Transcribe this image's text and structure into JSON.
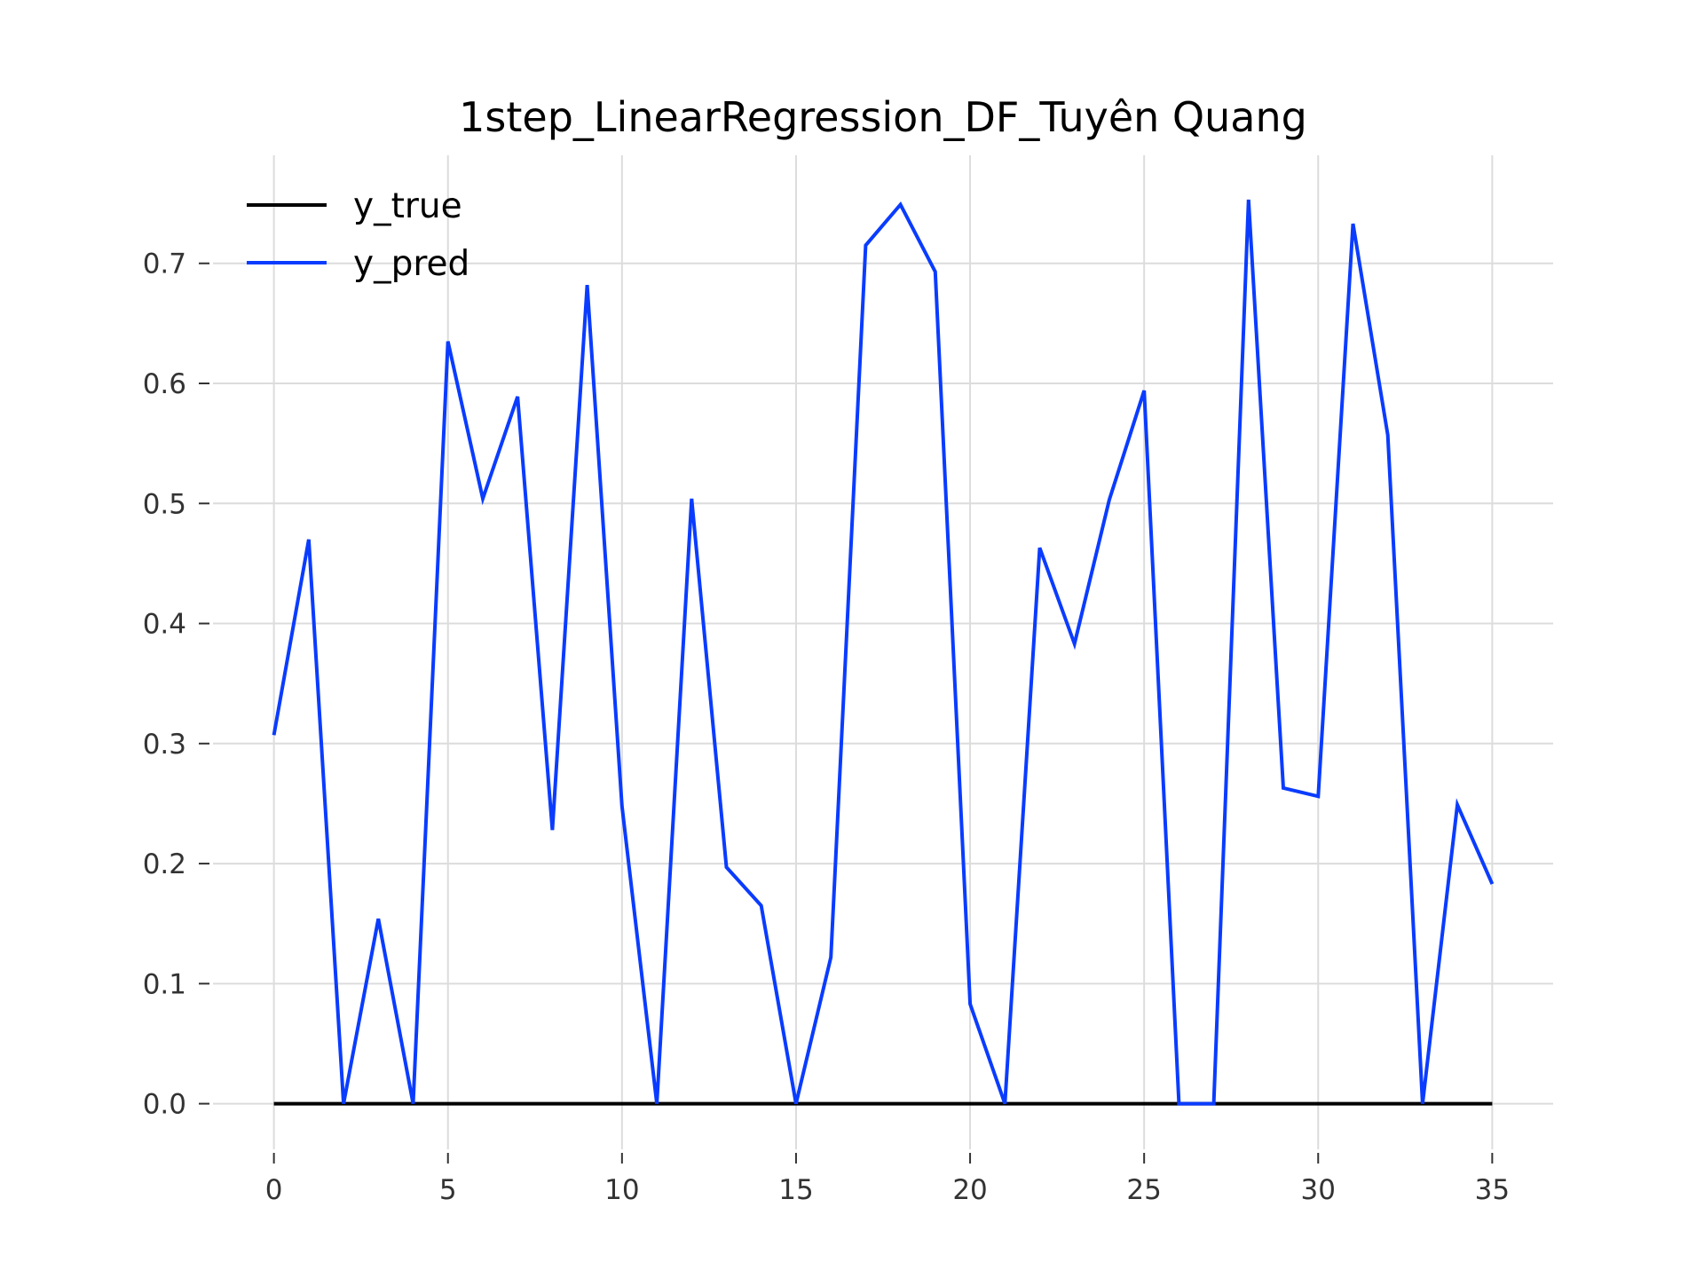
{
  "chart_data": {
    "type": "line",
    "title": "1step_LinearRegression_DF_Tuyên Quang",
    "xlabel": "",
    "ylabel": "",
    "x": [
      0,
      1,
      2,
      3,
      4,
      5,
      6,
      7,
      8,
      9,
      10,
      11,
      12,
      13,
      14,
      15,
      16,
      17,
      18,
      19,
      20,
      21,
      22,
      23,
      24,
      25,
      26,
      27,
      28,
      29,
      30,
      31,
      32,
      33,
      34,
      35
    ],
    "xlim": [
      -1.75,
      36.75
    ],
    "ylim": [
      -0.038,
      0.79
    ],
    "xticks": [
      0,
      5,
      10,
      15,
      20,
      25,
      30,
      35
    ],
    "yticks": [
      0.0,
      0.1,
      0.2,
      0.3,
      0.4,
      0.5,
      0.6,
      0.7
    ],
    "ytick_labels": [
      "0.0",
      "0.1",
      "0.2",
      "0.3",
      "0.4",
      "0.5",
      "0.6",
      "0.7"
    ],
    "grid": true,
    "legend_position": "top-left",
    "series": [
      {
        "name": "y_true",
        "color": "#000000",
        "values": [
          0,
          0,
          0,
          0,
          0,
          0,
          0,
          0,
          0,
          0,
          0,
          0,
          0,
          0,
          0,
          0,
          0,
          0,
          0,
          0,
          0,
          0,
          0,
          0,
          0,
          0,
          0,
          0,
          0,
          0,
          0,
          0,
          0,
          0,
          0,
          0
        ]
      },
      {
        "name": "y_pred",
        "color": "#0a3cff",
        "values": [
          0.307,
          0.47,
          0.0,
          0.154,
          0.0,
          0.635,
          0.504,
          0.589,
          0.228,
          0.682,
          0.248,
          0.0,
          0.504,
          0.197,
          0.165,
          0.0,
          0.122,
          0.715,
          0.749,
          0.693,
          0.083,
          0.0,
          0.463,
          0.383,
          0.503,
          0.594,
          0.0,
          0.0,
          0.753,
          0.263,
          0.256,
          0.733,
          0.557,
          0.0,
          0.249,
          0.183
        ]
      }
    ]
  }
}
